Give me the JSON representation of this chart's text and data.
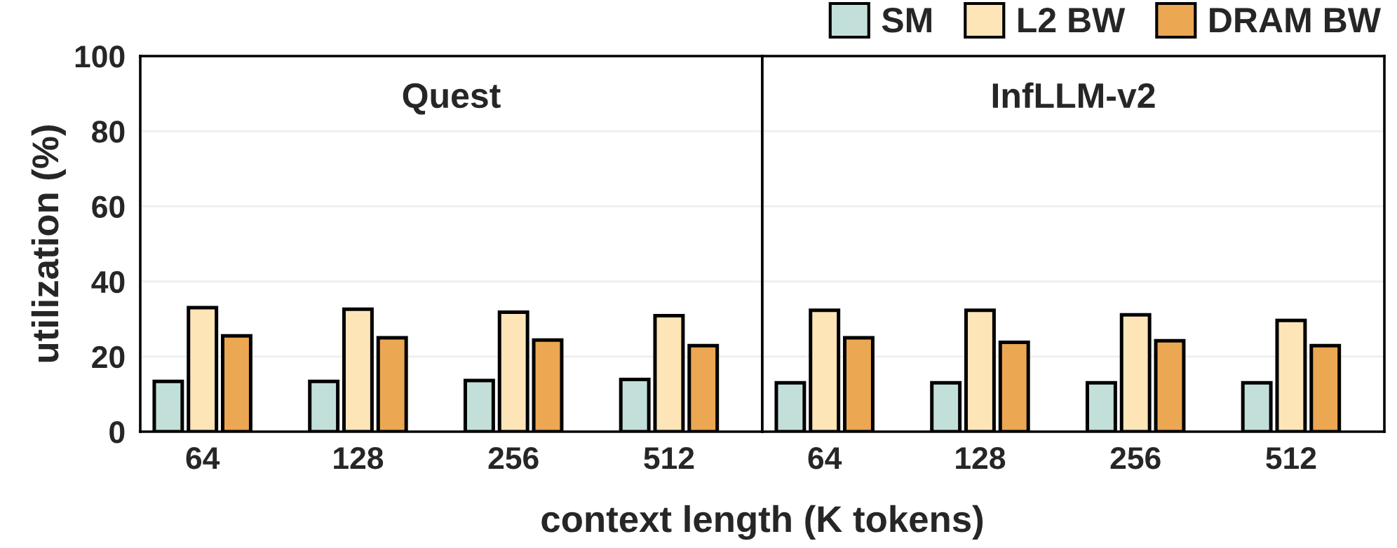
{
  "chart_data": [
    {
      "type": "bar",
      "title": "Quest",
      "ylabel": "utilization (%)",
      "xlabel": "context length (K tokens)",
      "categories": [
        "64",
        "128",
        "256",
        "512"
      ],
      "series": [
        {
          "name": "SM",
          "color": "#c2e0d9",
          "values": [
            13.4,
            13.4,
            13.6,
            13.9
          ]
        },
        {
          "name": "L2 BW",
          "color": "#fde5b8",
          "values": [
            33.0,
            32.6,
            31.8,
            30.9
          ]
        },
        {
          "name": "DRAM BW",
          "color": "#eca753",
          "values": [
            25.5,
            25.0,
            24.4,
            22.9
          ]
        }
      ],
      "ylim": [
        0,
        100
      ],
      "yticks": [
        0,
        20,
        40,
        60,
        80,
        100
      ],
      "grid": "y",
      "legend": "top right"
    },
    {
      "type": "bar",
      "title": "InfLLM-v2",
      "categories": [
        "64",
        "128",
        "256",
        "512"
      ],
      "series": [
        {
          "color": "#c2e0d9",
          "values": [
            13.0,
            13.0,
            13.0,
            13.0
          ]
        },
        {
          "color": "#fde5b8",
          "values": [
            32.3,
            32.3,
            31.1,
            29.6
          ]
        },
        {
          "color": "#eca753",
          "values": [
            25.0,
            23.8,
            24.2,
            22.9
          ]
        }
      ],
      "ylim": [
        0,
        100
      ],
      "yticks": [
        0,
        20,
        40,
        60,
        80,
        100
      ],
      "grid": "y",
      "tick_labels": "x"
    }
  ]
}
